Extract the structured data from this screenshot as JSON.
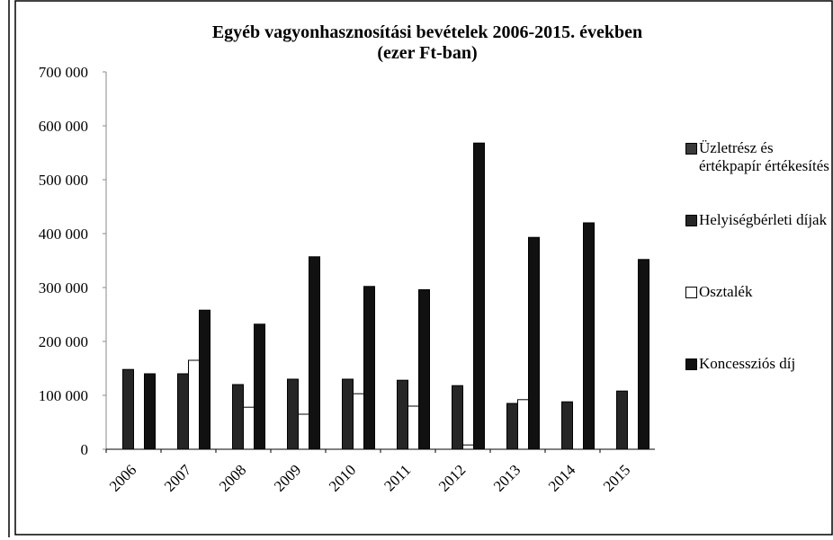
{
  "chart_data": {
    "type": "bar",
    "title": "Egyéb vagyonhasznosítási bevételek 2006-2015. években",
    "subtitle": "(ezer Ft-ban)",
    "categories": [
      "2006",
      "2007",
      "2008",
      "2009",
      "2010",
      "2011",
      "2012",
      "2013",
      "2014",
      "2015"
    ],
    "series": [
      {
        "name": "Üzletrész és értékpapír értékesítés",
        "color": "#3a3a3a",
        "values": [
          0,
          0,
          0,
          0,
          0,
          0,
          0,
          0,
          0,
          0
        ]
      },
      {
        "name": "Helyiségbérleti díjak",
        "color": "#262626",
        "values": [
          148000,
          140000,
          120000,
          130000,
          130000,
          128000,
          118000,
          85000,
          88000,
          108000
        ]
      },
      {
        "name": "Osztalék",
        "color": "#ffffff",
        "values": [
          0,
          165000,
          78000,
          65000,
          103000,
          80000,
          8000,
          92000,
          0,
          0
        ]
      },
      {
        "name": "Koncessziós díj",
        "color": "#111111",
        "values": [
          140000,
          258000,
          232000,
          357000,
          302000,
          296000,
          568000,
          393000,
          420000,
          352000
        ]
      }
    ],
    "ylim": [
      0,
      700000
    ],
    "yticks": [
      0,
      {
        "value": 100000,
        "label": "100 000"
      },
      {
        "value": 200000,
        "label": "200 000"
      },
      {
        "value": 300000,
        "label": "300 000"
      },
      {
        "value": 400000,
        "label": "400 000"
      },
      {
        "value": 500000,
        "label": "500 000"
      },
      {
        "value": 600000,
        "label": "600 000"
      },
      {
        "value": 700000,
        "label": "700 000"
      }
    ],
    "grid": false
  }
}
